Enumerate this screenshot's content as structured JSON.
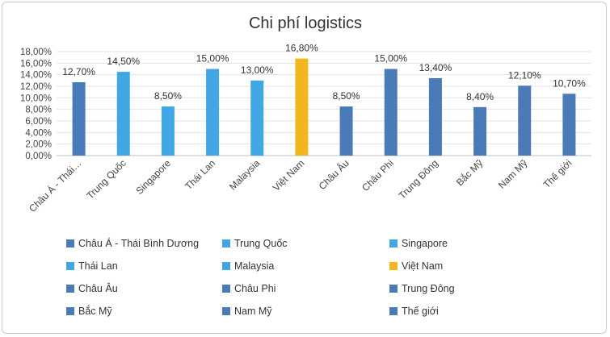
{
  "chart_data": {
    "type": "bar",
    "title": "Chi phí logistics",
    "categories": [
      "Châu Á - Thái Bình Dương",
      "Trung Quốc",
      "Singapore",
      "Thái Lan",
      "Malaysia",
      "Việt Nam",
      "Châu Âu",
      "Châu Phi",
      "Trung Đông",
      "Bắc Mỹ",
      "Nam Mỹ",
      "Thế giới"
    ],
    "axis_category_labels": [
      "Châu Á - Thái…",
      "Trung Quốc",
      "Singapore",
      "Thái Lan",
      "Malaysia",
      "Việt Nam",
      "Châu Âu",
      "Châu Phi",
      "Trung Đông",
      "Bắc Mỹ",
      "Nam Mỹ",
      "Thế giới"
    ],
    "values": [
      12.7,
      14.5,
      8.5,
      15.0,
      13.0,
      16.8,
      8.5,
      15.0,
      13.4,
      8.4,
      12.1,
      10.7
    ],
    "data_labels": [
      "12,70%",
      "14,50%",
      "8,50%",
      "15,00%",
      "13,00%",
      "16,80%",
      "8,50%",
      "15,00%",
      "13,40%",
      "8,40%",
      "12,10%",
      "10,70%"
    ],
    "colors": [
      "#4a7ab8",
      "#41a7e4",
      "#41a7e4",
      "#41a7e4",
      "#41a7e4",
      "#f2b61f",
      "#4a7ab8",
      "#4a7ab8",
      "#4a7ab8",
      "#4a7ab8",
      "#4a7ab8",
      "#4a7ab8"
    ],
    "ylim": [
      0,
      18
    ],
    "yticks": [
      0,
      2,
      4,
      6,
      8,
      10,
      12,
      14,
      16,
      18
    ],
    "ytick_labels": [
      "0,00%",
      "2,00%",
      "4,00%",
      "6,00%",
      "8,00%",
      "10,00%",
      "12,00%",
      "14,00%",
      "16,00%",
      "18,00%"
    ],
    "grid": true,
    "legend": {
      "placement": "bottom",
      "entries": [
        "Châu Á - Thái Bình Dương",
        "Trung Quốc",
        "Singapore",
        "Thái Lan",
        "Malaysia",
        "Việt Nam",
        "Châu Âu",
        "Châu Phi",
        "Trung Đông",
        "Bắc Mỹ",
        "Nam Mỹ",
        "Thế giới"
      ]
    }
  }
}
